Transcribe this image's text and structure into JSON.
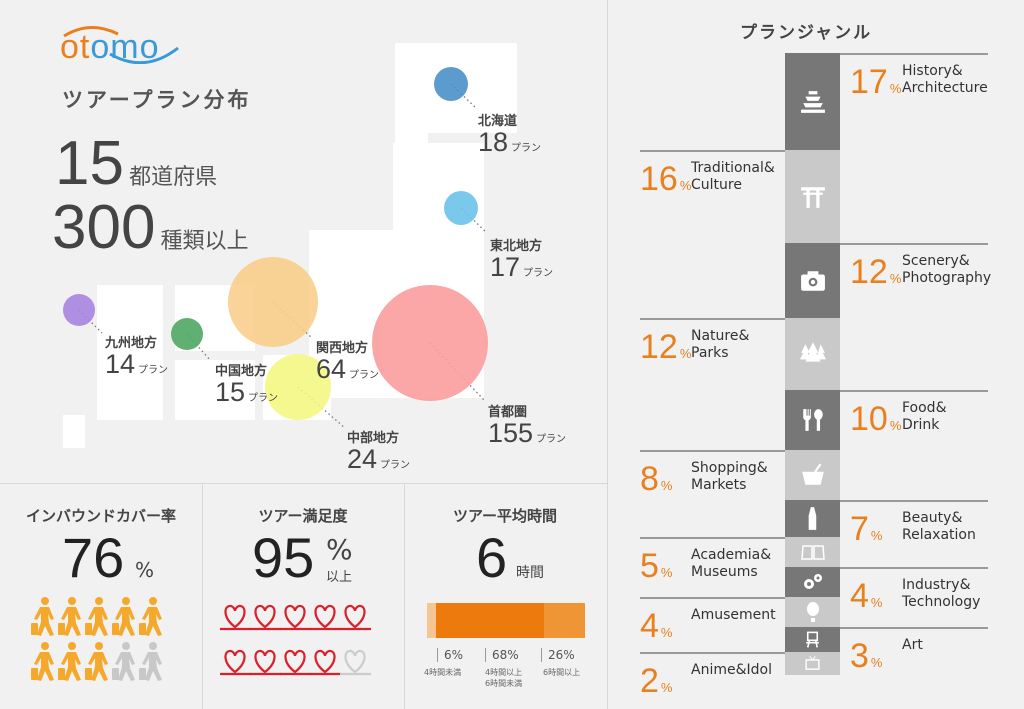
{
  "logo": {
    "text_part1": "ot",
    "text_part2": "omo",
    "colors": {
      "orange": "#e8801e",
      "blue": "#3a9ad9"
    }
  },
  "distribution": {
    "title": "ツアープラン分布",
    "prefectures_value": "15",
    "prefectures_unit": "都道府県",
    "plans_value": "300",
    "plans_unit": "種類以上",
    "plan_unit": "プラン",
    "regions": [
      {
        "name": "北海道",
        "plans": "18",
        "color": "#4a90c8"
      },
      {
        "name": "東北地方",
        "plans": "17",
        "color": "#6cc3ea"
      },
      {
        "name": "関西地方",
        "plans": "64",
        "color": "#f9cf8c"
      },
      {
        "name": "首都圏",
        "plans": "155",
        "color": "#fb9d9d"
      },
      {
        "name": "九州地方",
        "plans": "14",
        "color": "#a684e0"
      },
      {
        "name": "中国地方",
        "plans": "15",
        "color": "#4fa865"
      },
      {
        "name": "中部地方",
        "plans": "24",
        "color": "#f4f783"
      }
    ]
  },
  "stats": {
    "inbound": {
      "title": "インバウンドカバー率",
      "value": "76",
      "unit": "%",
      "fraction": 0.76
    },
    "satisfaction": {
      "title": "ツアー満足度",
      "value": "95",
      "unit": "%",
      "unit2": "以上",
      "fraction": 0.95
    },
    "duration": {
      "title": "ツアー平均時間",
      "value": "6",
      "unit": "時間",
      "segments": [
        {
          "pct": "6%",
          "label": "4時間未満",
          "value": 6,
          "color": "#f6c594"
        },
        {
          "pct": "68%",
          "label": "4時間以上",
          "label2": "6時間未満",
          "value": 68,
          "color": "#ec7a0c"
        },
        {
          "pct": "26%",
          "label": "6時間以上",
          "value": 26,
          "color": "#f09535"
        }
      ]
    }
  },
  "genres": {
    "title": "プランジャンル",
    "items": [
      {
        "pct": "17",
        "line1": "History&",
        "line2": "Architecture",
        "icon": "castle-icon"
      },
      {
        "pct": "16",
        "line1": "Traditional&",
        "line2": "Culture",
        "icon": "torii-icon"
      },
      {
        "pct": "12",
        "line1": "Scenery&",
        "line2": "Photography",
        "icon": "camera-icon"
      },
      {
        "pct": "12",
        "line1": "Nature&",
        "line2": "Parks",
        "icon": "trees-icon"
      },
      {
        "pct": "10",
        "line1": "Food&",
        "line2": "Drink",
        "icon": "fork-spoon-icon"
      },
      {
        "pct": "8",
        "line1": "Shopping&",
        "line2": "Markets",
        "icon": "basket-icon"
      },
      {
        "pct": "7",
        "line1": "Beauty&",
        "line2": "Relaxation",
        "icon": "bottle-icon"
      },
      {
        "pct": "5",
        "line1": "Academia&",
        "line2": "Museums",
        "icon": "book-icon"
      },
      {
        "pct": "4",
        "line1": "Industry&",
        "line2": "Technology",
        "icon": "gears-icon"
      },
      {
        "pct": "4",
        "line1": "Amusement",
        "line2": "",
        "icon": "balloon-icon"
      },
      {
        "pct": "3",
        "line1": "Art",
        "line2": "",
        "icon": "easel-icon"
      },
      {
        "pct": "2",
        "line1": "Anime&Idol",
        "line2": "",
        "icon": "tv-icon"
      }
    ],
    "pct_symbol": "%"
  },
  "chart_data": {
    "type": "bar",
    "title": "プランジャンル",
    "categories": [
      "History&Architecture",
      "Traditional&Culture",
      "Scenery&Photography",
      "Nature&Parks",
      "Food&Drink",
      "Shopping&Markets",
      "Beauty&Relaxation",
      "Academia&Museums",
      "Industry&Technology",
      "Amusement",
      "Art",
      "Anime&Idol"
    ],
    "values": [
      17,
      16,
      12,
      12,
      10,
      8,
      7,
      5,
      4,
      4,
      3,
      2
    ],
    "ylabel": "%"
  }
}
